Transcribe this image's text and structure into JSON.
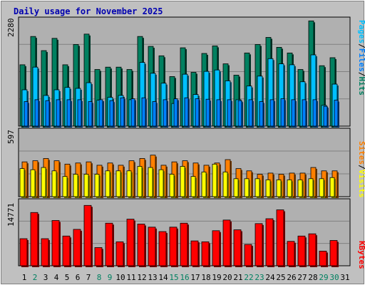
{
  "chart_data": [
    {
      "type": "bar",
      "title": "Daily usage for November 2025",
      "categories": [
        "1",
        "2",
        "3",
        "4",
        "5",
        "6",
        "7",
        "8",
        "9",
        "10",
        "11",
        "12",
        "13",
        "14",
        "15",
        "16",
        "17",
        "18",
        "19",
        "20",
        "21",
        "22",
        "23",
        "24",
        "25",
        "26",
        "27",
        "28",
        "29",
        "30",
        "31"
      ],
      "weekend_days": [
        "2",
        "8",
        "9",
        "15",
        "16",
        "22",
        "23",
        "29",
        "30"
      ],
      "ymax_label": "2280",
      "ylim": [
        0,
        2280
      ],
      "grid": true,
      "legend_vertical": [
        {
          "label": "Pages",
          "color": "#00c0ff"
        },
        {
          "label": "/",
          "color": "#000000"
        },
        {
          "label": "Files",
          "color": "#0080ff"
        },
        {
          "label": "/",
          "color": "#000000"
        },
        {
          "label": "Hits",
          "color": "#008060"
        }
      ],
      "series": [
        {
          "name": "Hits",
          "color": "#008060",
          "values": [
            1300,
            1900,
            1600,
            1860,
            1300,
            1730,
            1950,
            1200,
            1250,
            1250,
            1200,
            1900,
            1690,
            1490,
            1050,
            1660,
            1140,
            1540,
            1700,
            1320,
            1080,
            1550,
            1730,
            1880,
            1670,
            1550,
            1200,
            2230,
            1280,
            1450,
            0
          ]
        },
        {
          "name": "Files",
          "color": "#0080ff",
          "values": [
            520,
            560,
            540,
            560,
            560,
            560,
            520,
            560,
            540,
            600,
            580,
            600,
            520,
            560,
            580,
            600,
            580,
            570,
            560,
            560,
            540,
            560,
            520,
            560,
            580,
            560,
            560,
            560,
            420,
            550,
            0
          ]
        },
        {
          "name": "Pages",
          "color": "#00c0ff",
          "values": [
            770,
            1250,
            650,
            770,
            820,
            800,
            920,
            550,
            610,
            650,
            560,
            1350,
            1120,
            910,
            480,
            1100,
            670,
            1160,
            1190,
            960,
            560,
            850,
            1060,
            1430,
            1320,
            1300,
            940,
            1510,
            440,
            890,
            0
          ]
        }
      ]
    },
    {
      "type": "bar",
      "ymax_label": "597",
      "ylim": [
        0,
        597
      ],
      "legend_vertical": [
        {
          "label": "Sites",
          "color": "#ff8000"
        },
        {
          "label": "/",
          "color": "#000000"
        },
        {
          "label": "Visits",
          "color": "#ffff00"
        }
      ],
      "series": [
        {
          "name": "Visits",
          "color": "#ffff00",
          "values": [
            250,
            240,
            260,
            230,
            180,
            200,
            200,
            200,
            230,
            230,
            230,
            270,
            260,
            240,
            200,
            270,
            180,
            220,
            290,
            220,
            160,
            160,
            160,
            150,
            150,
            150,
            150,
            160,
            160,
            170,
            0
          ]
        },
        {
          "name": "Sites",
          "color": "#ff8000",
          "values": [
            310,
            320,
            340,
            320,
            290,
            300,
            310,
            280,
            300,
            280,
            320,
            340,
            370,
            280,
            310,
            320,
            300,
            280,
            300,
            330,
            250,
            230,
            200,
            210,
            200,
            210,
            210,
            260,
            230,
            230,
            0
          ]
        }
      ]
    },
    {
      "type": "bar",
      "ymax_label": "14771",
      "ylim": [
        0,
        14771
      ],
      "legend_vertical": [
        {
          "label": "KBytes",
          "color": "#ff0000"
        }
      ],
      "series": [
        {
          "name": "KBytes",
          "color": "#ff0000",
          "values": [
            6100,
            12000,
            6100,
            10200,
            6700,
            8200,
            13600,
            4100,
            9600,
            5400,
            10500,
            9400,
            8700,
            7700,
            8700,
            9600,
            5600,
            5400,
            7900,
            10300,
            8100,
            4800,
            9500,
            10600,
            12600,
            5500,
            6700,
            7200,
            3300,
            5700,
            0
          ]
        }
      ]
    }
  ]
}
